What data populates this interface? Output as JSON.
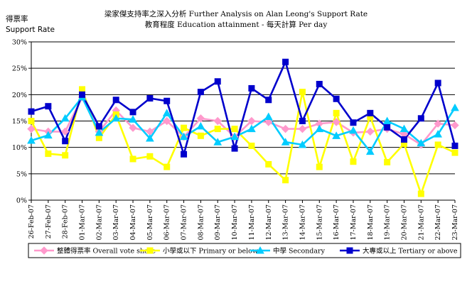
{
  "chart_data": {
    "type": "line",
    "title": "梁家傑支持率之深入分析 Further Analysis on Alan Leong's Support Rate",
    "subtitle": "教育程度 Education attainment - 每天計算 Per day",
    "ylabel_line1": "得票率",
    "ylabel_line2": "Support Rate",
    "ylim": [
      0,
      30
    ],
    "yticks": [
      "0%",
      "5%",
      "10%",
      "15%",
      "20%",
      "25%",
      "30%"
    ],
    "grid": true,
    "legend_position": "bottom",
    "categories": [
      "26-Feb-07",
      "27-Feb-07",
      "28-Feb-07",
      "01-Mar-07",
      "02-Mar-07",
      "03-Mar-07",
      "04-Mar-07",
      "05-Mar-07",
      "06-Mar-07",
      "07-Mar-07",
      "08-Mar-07",
      "09-Mar-07",
      "10-Mar-07",
      "11-Mar-07",
      "12-Mar-07",
      "13-Mar-07",
      "14-Mar-07",
      "15-Mar-07",
      "16-Mar-07",
      "17-Mar-07",
      "18-Mar-07",
      "19-Mar-07",
      "20-Mar-07",
      "21-Mar-07",
      "22-Mar-07",
      "23-Mar-07"
    ],
    "series": [
      {
        "name": "整體得票率 Overall vote share",
        "color": "#ff99cc",
        "marker": "diamond",
        "values": [
          13.5,
          13.0,
          13.0,
          19.5,
          13.0,
          17.0,
          13.7,
          13.0,
          15.0,
          12.0,
          15.5,
          15.0,
          12.0,
          15.0,
          14.8,
          13.5,
          13.5,
          14.5,
          14.8,
          12.8,
          13.0,
          13.5,
          12.5,
          10.5,
          14.5,
          14.2
        ]
      },
      {
        "name": "小學或以下 Primary or below",
        "color": "#ffff00",
        "marker": "square",
        "values": [
          15.0,
          8.8,
          8.5,
          21.0,
          11.8,
          16.2,
          7.8,
          8.3,
          6.3,
          13.7,
          12.2,
          13.5,
          13.5,
          10.3,
          6.8,
          3.8,
          20.5,
          6.3,
          16.5,
          7.3,
          15.8,
          7.2,
          10.7,
          1.2,
          10.5,
          9.0
        ]
      },
      {
        "name": "中學 Secondary",
        "color": "#00ccff",
        "marker": "triangle",
        "values": [
          11.3,
          12.3,
          15.5,
          19.5,
          12.8,
          15.5,
          15.3,
          11.7,
          16.5,
          12.0,
          14.0,
          11.0,
          12.0,
          13.5,
          15.8,
          11.0,
          10.5,
          13.5,
          12.2,
          13.2,
          9.2,
          15.0,
          13.5,
          10.8,
          12.5,
          17.5
        ]
      },
      {
        "name": "大專或以上 Tertiary or above",
        "color": "#0000cc",
        "marker": "square",
        "values": [
          16.8,
          17.8,
          11.2,
          20.0,
          14.0,
          19.0,
          16.7,
          19.3,
          18.8,
          8.7,
          20.5,
          22.5,
          9.8,
          21.2,
          19.0,
          26.2,
          15.0,
          22.0,
          19.2,
          14.7,
          16.5,
          13.8,
          11.5,
          15.5,
          22.2,
          10.3
        ]
      }
    ]
  }
}
